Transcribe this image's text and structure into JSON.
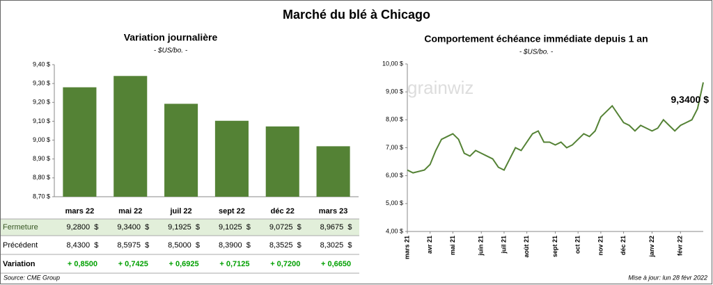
{
  "title": "Marché du blé à Chicago",
  "chart_data": [
    {
      "type": "bar",
      "title": "Variation journalière",
      "subtitle": "- $US/bo. -",
      "categories": [
        "mars 22",
        "mai 22",
        "juil 22",
        "sept 22",
        "déc 22",
        "mars 23"
      ],
      "values": [
        9.28,
        9.34,
        9.1925,
        9.1025,
        9.0725,
        8.9675
      ],
      "color": "#548235",
      "ylim": [
        8.7,
        9.4
      ],
      "yticks": [
        {
          "value": 8.7,
          "label": "8,70 $"
        },
        {
          "value": 8.8,
          "label": "8,80 $"
        },
        {
          "value": 8.9,
          "label": "8,90 $"
        },
        {
          "value": 9.0,
          "label": "9,00 $"
        },
        {
          "value": 9.1,
          "label": "9,10 $"
        },
        {
          "value": 9.2,
          "label": "9,20 $"
        },
        {
          "value": 9.3,
          "label": "9,30 $"
        },
        {
          "value": 9.4,
          "label": "9,40 $"
        }
      ],
      "grid": false
    },
    {
      "type": "line",
      "title": "Comportement  échéance immédiate depuis 1 an",
      "subtitle": "- $US/bo. -",
      "values": [
        6.2,
        6.1,
        6.15,
        6.2,
        6.4,
        6.9,
        7.3,
        7.4,
        7.5,
        7.3,
        6.8,
        6.7,
        6.9,
        6.8,
        6.7,
        6.6,
        6.3,
        6.2,
        6.6,
        7.0,
        6.9,
        7.2,
        7.5,
        7.6,
        7.2,
        7.2,
        7.1,
        7.2,
        7.0,
        7.1,
        7.3,
        7.5,
        7.4,
        7.6,
        8.1,
        8.3,
        8.5,
        8.2,
        7.9,
        7.8,
        7.6,
        7.8,
        7.7,
        7.6,
        7.7,
        8.0,
        7.8,
        7.6,
        7.8,
        7.9,
        8.0,
        8.4,
        9.34
      ],
      "color": "#548235",
      "xlim": [
        0,
        52
      ],
      "xticks": [
        {
          "value": 0,
          "label": "mars 21"
        },
        {
          "value": 4,
          "label": "avr 21"
        },
        {
          "value": 8,
          "label": "mai 21"
        },
        {
          "value": 13,
          "label": "juin 21"
        },
        {
          "value": 17,
          "label": "juil 21"
        },
        {
          "value": 21,
          "label": "août 21"
        },
        {
          "value": 26,
          "label": "sept 21"
        },
        {
          "value": 30,
          "label": "oct 21"
        },
        {
          "value": 34,
          "label": "nov 21"
        },
        {
          "value": 38,
          "label": "déc 21"
        },
        {
          "value": 43,
          "label": "janv 22"
        },
        {
          "value": 48,
          "label": "févr 22"
        }
      ],
      "ylim": [
        4,
        10
      ],
      "yticks": [
        {
          "value": 4,
          "label": "4,00 $"
        },
        {
          "value": 5,
          "label": "5,00 $"
        },
        {
          "value": 6,
          "label": "6,00 $"
        },
        {
          "value": 7,
          "label": "7,00 $"
        },
        {
          "value": 8,
          "label": "8,00 $"
        },
        {
          "value": 9,
          "label": "9,00 $"
        },
        {
          "value": 10,
          "label": "10,00 $"
        }
      ],
      "annotation": "9,3400 $",
      "watermark": "grainwiz",
      "grid": false
    }
  ],
  "table": {
    "rows": [
      {
        "label": "Fermeture",
        "cells": [
          "9,2800  $",
          "9,3400  $",
          "9,1925  $",
          "9,1025  $",
          "9,0725  $",
          "8,9675  $"
        ]
      },
      {
        "label": "Précédent",
        "cells": [
          "8,4300  $",
          "8,5975  $",
          "8,5000  $",
          "8,3900  $",
          "8,3525  $",
          "8,3025  $"
        ]
      },
      {
        "label": "Variation",
        "cells": [
          "+ 0,8500",
          "+ 0,7425",
          "+ 0,6925",
          "+ 0,7125",
          "+ 0,7200",
          "+ 0,6650"
        ]
      }
    ]
  },
  "source": "Source: CME Group",
  "updated": "Mise à jour: lun 28 févr 2022"
}
